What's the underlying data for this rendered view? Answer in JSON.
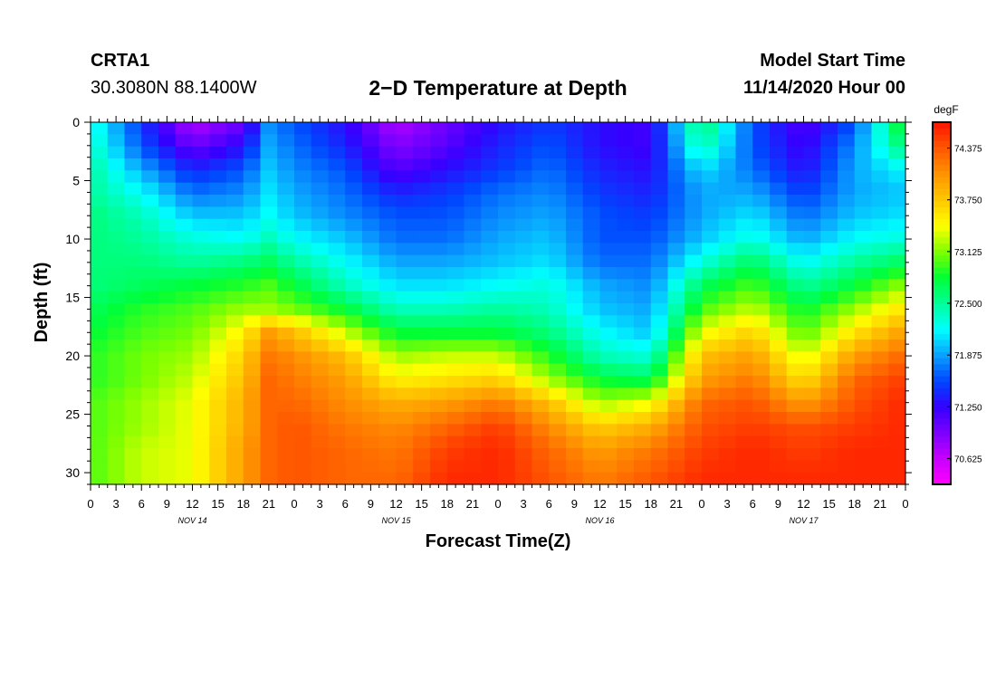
{
  "header": {
    "station": "CRTA1",
    "coords": "30.3080N 88.1400W",
    "title": "2−D Temperature at Depth",
    "start_label": "Model Start Time",
    "start_value": "11/14/2020 Hour 00"
  },
  "chart_data": {
    "type": "heatmap",
    "title": "2−D Temperature at Depth",
    "xlabel": "Forecast Time(Z)",
    "ylabel": "Depth (ft)",
    "x_unit": "forecast hour since 11/14/2020 00Z",
    "xlim": [
      0,
      96
    ],
    "ylim": [
      0,
      31
    ],
    "y_inverted": true,
    "x_ticks": [
      0,
      3,
      6,
      9,
      12,
      15,
      18,
      21,
      24,
      27,
      30,
      33,
      36,
      39,
      42,
      45,
      48,
      51,
      54,
      57,
      60,
      63,
      66,
      69,
      72,
      75,
      78,
      81,
      84,
      87,
      90,
      93,
      96
    ],
    "x_tick_labels": [
      "0",
      "3",
      "6",
      "9",
      "12",
      "15",
      "18",
      "21",
      "0",
      "3",
      "6",
      "9",
      "12",
      "15",
      "18",
      "21",
      "0",
      "3",
      "6",
      "9",
      "12",
      "15",
      "18",
      "21",
      "0",
      "3",
      "6",
      "9",
      "12",
      "15",
      "18",
      "21",
      "0"
    ],
    "day_labels": [
      {
        "x": 12,
        "label": "NOV 14"
      },
      {
        "x": 36,
        "label": "NOV 15"
      },
      {
        "x": 60,
        "label": "NOV 16"
      },
      {
        "x": 84,
        "label": "NOV 17"
      }
    ],
    "y_ticks": [
      0,
      5,
      10,
      15,
      20,
      25,
      30
    ],
    "colorbar": {
      "unit": "degF",
      "min": 70.3125,
      "max": 74.6875,
      "ticks": [
        74.375,
        73.75,
        73.125,
        72.5,
        71.875,
        71.25,
        70.625
      ],
      "tick_labels": [
        "74.375",
        "73.750",
        "73.125",
        "72.500",
        "71.875",
        "71.250",
        "70.625"
      ],
      "colors": [
        "#ff00ff",
        "#c800ff",
        "#7c00ff",
        "#3500ff",
        "#0046ff",
        "#0aa0ff",
        "#00ffff",
        "#00ff9a",
        "#00ff35",
        "#7dff00",
        "#ffff00",
        "#ffc800",
        "#ff9400",
        "#ff5800",
        "#ff1400"
      ]
    },
    "depths": [
      0,
      2,
      4,
      6,
      8,
      10,
      12,
      14,
      16,
      18,
      20,
      22,
      24,
      26,
      28,
      31
    ],
    "times": [
      0,
      6,
      12,
      18,
      21,
      24,
      30,
      36,
      42,
      48,
      54,
      60,
      66,
      72,
      78,
      84,
      90,
      96
    ],
    "values": [
      [
        72.3,
        71.5,
        70.7,
        71.0,
        71.8,
        71.6,
        71.3,
        70.7,
        71.0,
        71.3,
        71.5,
        71.3,
        71.2,
        72.7,
        71.6,
        71.1,
        71.6,
        73.0
      ],
      [
        72.4,
        71.6,
        71.0,
        71.3,
        71.9,
        71.7,
        71.4,
        70.9,
        71.1,
        71.4,
        71.6,
        71.3,
        71.2,
        72.5,
        71.6,
        71.2,
        71.8,
        72.7
      ],
      [
        72.5,
        71.9,
        71.4,
        71.6,
        72.0,
        71.8,
        71.6,
        71.1,
        71.3,
        71.5,
        71.7,
        71.4,
        71.3,
        72.1,
        71.7,
        71.3,
        71.9,
        72.2
      ],
      [
        72.5,
        72.2,
        71.7,
        71.8,
        72.1,
        71.9,
        71.7,
        71.4,
        71.5,
        71.7,
        71.8,
        71.5,
        71.4,
        71.9,
        71.9,
        71.5,
        71.9,
        72.0
      ],
      [
        72.6,
        72.4,
        72.0,
        72.0,
        72.2,
        72.0,
        71.8,
        71.6,
        71.6,
        71.8,
        71.9,
        71.6,
        71.5,
        71.9,
        72.1,
        71.7,
        72.0,
        72.1
      ],
      [
        72.6,
        72.5,
        72.3,
        72.2,
        72.4,
        72.2,
        72.0,
        71.7,
        71.7,
        71.9,
        72.0,
        71.6,
        71.6,
        72.0,
        72.3,
        71.9,
        72.2,
        72.3
      ],
      [
        72.6,
        72.6,
        72.5,
        72.6,
        72.7,
        72.5,
        72.2,
        71.9,
        71.9,
        72.0,
        72.1,
        71.7,
        71.7,
        72.3,
        72.7,
        72.2,
        72.5,
        72.7
      ],
      [
        72.6,
        72.7,
        72.8,
        72.9,
        73.0,
        72.8,
        72.4,
        72.1,
        72.1,
        72.2,
        72.3,
        71.9,
        71.8,
        72.7,
        73.0,
        72.5,
        72.8,
        73.2
      ],
      [
        72.7,
        72.9,
        73.0,
        73.2,
        73.2,
        73.1,
        72.8,
        72.4,
        72.4,
        72.5,
        72.4,
        72.0,
        71.9,
        73.0,
        73.3,
        72.8,
        73.2,
        73.6
      ],
      [
        72.8,
        73.0,
        73.1,
        73.5,
        74.0,
        73.8,
        73.3,
        72.8,
        72.8,
        72.8,
        72.6,
        72.2,
        72.0,
        73.4,
        73.7,
        73.0,
        73.6,
        74.0
      ],
      [
        72.9,
        73.1,
        73.2,
        73.7,
        74.2,
        74.1,
        73.8,
        73.2,
        73.3,
        73.3,
        72.9,
        72.4,
        72.3,
        73.8,
        74.0,
        73.3,
        74.0,
        74.3
      ],
      [
        72.9,
        73.1,
        73.3,
        73.8,
        74.3,
        74.2,
        74.0,
        73.5,
        73.6,
        73.7,
        73.2,
        72.8,
        72.7,
        74.0,
        74.2,
        73.6,
        74.3,
        74.5
      ],
      [
        73.0,
        73.2,
        73.4,
        73.9,
        74.3,
        74.3,
        74.1,
        73.9,
        74.0,
        74.2,
        73.8,
        73.2,
        73.4,
        74.3,
        74.4,
        74.0,
        74.4,
        74.6
      ],
      [
        73.0,
        73.2,
        73.4,
        73.9,
        74.3,
        74.4,
        74.2,
        74.1,
        74.3,
        74.5,
        74.1,
        73.7,
        73.9,
        74.4,
        74.5,
        74.4,
        74.5,
        74.6
      ],
      [
        73.0,
        73.3,
        73.4,
        74.0,
        74.3,
        74.4,
        74.3,
        74.2,
        74.5,
        74.6,
        74.3,
        74.0,
        74.2,
        74.5,
        74.6,
        74.5,
        74.6,
        74.6
      ],
      [
        73.0,
        73.3,
        73.4,
        74.0,
        74.3,
        74.4,
        74.3,
        74.3,
        74.6,
        74.6,
        74.4,
        74.2,
        74.4,
        74.6,
        74.6,
        74.6,
        74.6,
        74.6
      ]
    ]
  }
}
